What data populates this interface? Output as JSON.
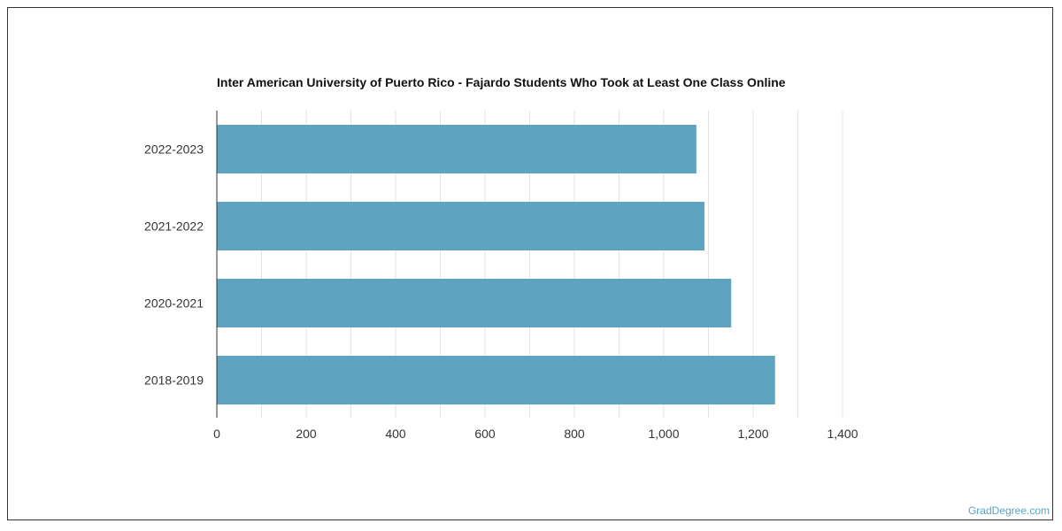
{
  "chart_data": {
    "type": "bar",
    "orientation": "horizontal",
    "title": "Inter American University of Puerto Rico - Fajardo Students Who Took at Least One Class Online",
    "categories": [
      "2022-2023",
      "2021-2022",
      "2020-2021",
      "2018-2019"
    ],
    "values": [
      1073,
      1091,
      1151,
      1249
    ],
    "xlim": [
      0,
      1400
    ],
    "x_ticks": [
      "0",
      "200",
      "400",
      "600",
      "800",
      "1,000",
      "1,200",
      "1,400"
    ],
    "grid": true,
    "bar_color": "#5ea3bf",
    "xlabel": "",
    "ylabel": ""
  },
  "watermark": "GradDegree.com"
}
